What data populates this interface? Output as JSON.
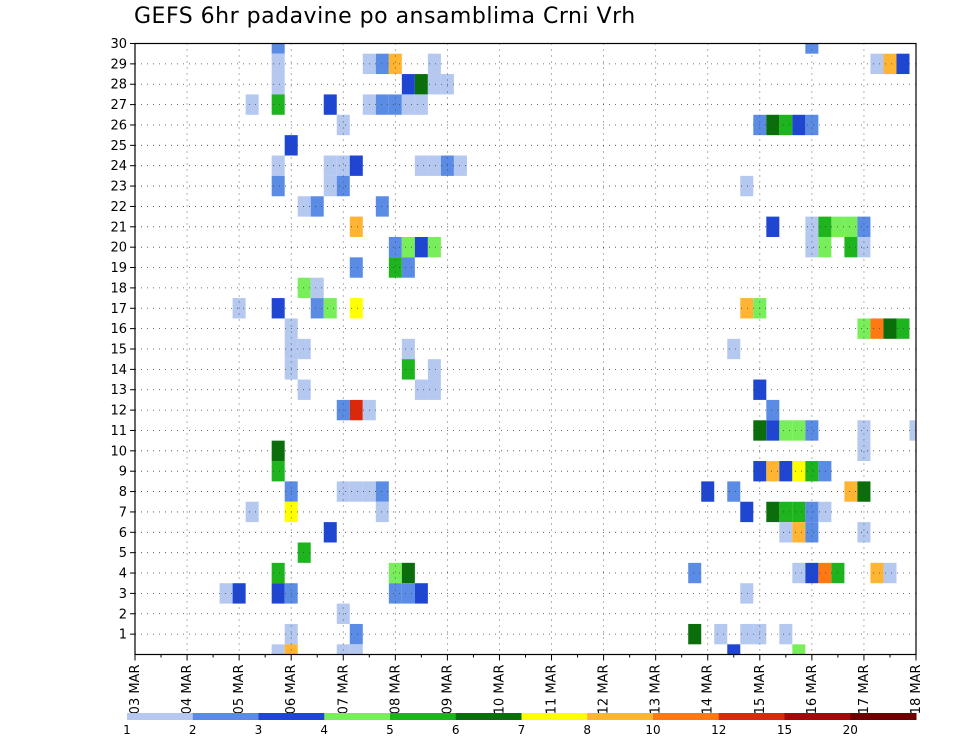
{
  "title": "GEFS 6hr padavine po ansamblima Crni Vrh",
  "chart_data": {
    "type": "heatmap",
    "title": "GEFS 6hr padavine po ansamblima Crni Vrh",
    "x_ticks": [
      "03 MAR",
      "04 MAR",
      "05 MAR",
      "06 MAR",
      "07 MAR",
      "08 MAR",
      "09 MAR",
      "10 MAR",
      "11 MAR",
      "12 MAR",
      "13 MAR",
      "14 MAR",
      "15 MAR",
      "16 MAR",
      "17 MAR",
      "18 MAR"
    ],
    "y_ticks": [
      "1",
      "2",
      "3",
      "4",
      "5",
      "6",
      "7",
      "8",
      "9",
      "10",
      "11",
      "12",
      "13",
      "14",
      "15",
      "16",
      "17",
      "18",
      "19",
      "20",
      "21",
      "22",
      "23",
      "24",
      "25",
      "26",
      "27",
      "28",
      "29",
      "30"
    ],
    "xlim_steps": [
      0,
      60
    ],
    "ylim": [
      0,
      30
    ],
    "grid": true,
    "colorbar": {
      "labels": [
        "1",
        "2",
        "3",
        "4",
        "5",
        "6",
        "7",
        "8",
        "10",
        "12",
        "15",
        "20"
      ],
      "colors": [
        "#b4c8f0",
        "#5a8ce6",
        "#1e46d2",
        "#78ee5a",
        "#1eb41e",
        "#0a6e0a",
        "#ffff00",
        "#ffb432",
        "#ff7814",
        "#dc280a",
        "#a00a0a",
        "#6e0000"
      ]
    },
    "cells": [
      [
        11,
        30,
        2
      ],
      [
        52,
        30,
        2
      ],
      [
        11,
        29,
        1
      ],
      [
        18,
        29,
        1
      ],
      [
        19,
        29,
        2
      ],
      [
        20,
        29,
        8
      ],
      [
        23,
        29,
        1
      ],
      [
        57,
        29,
        1
      ],
      [
        58,
        29,
        8
      ],
      [
        59,
        29,
        3
      ],
      [
        11,
        28,
        1
      ],
      [
        21,
        28,
        3
      ],
      [
        22,
        28,
        6
      ],
      [
        23,
        28,
        1
      ],
      [
        24,
        28,
        1
      ],
      [
        9,
        27,
        1
      ],
      [
        11,
        27,
        5
      ],
      [
        15,
        27,
        3
      ],
      [
        18,
        27,
        1
      ],
      [
        19,
        27,
        2
      ],
      [
        20,
        27,
        2
      ],
      [
        21,
        27,
        1
      ],
      [
        22,
        27,
        1
      ],
      [
        16,
        26,
        1
      ],
      [
        48,
        26,
        2
      ],
      [
        49,
        26,
        6
      ],
      [
        50,
        26,
        5
      ],
      [
        51,
        26,
        3
      ],
      [
        52,
        26,
        2
      ],
      [
        12,
        25,
        3
      ],
      [
        11,
        24,
        1
      ],
      [
        15,
        24,
        1
      ],
      [
        16,
        24,
        1
      ],
      [
        17,
        24,
        3
      ],
      [
        22,
        24,
        1
      ],
      [
        23,
        24,
        1
      ],
      [
        24,
        24,
        2
      ],
      [
        25,
        24,
        1
      ],
      [
        11,
        23,
        2
      ],
      [
        15,
        23,
        1
      ],
      [
        16,
        23,
        2
      ],
      [
        47,
        23,
        1
      ],
      [
        13,
        22,
        1
      ],
      [
        14,
        22,
        2
      ],
      [
        19,
        22,
        2
      ],
      [
        17,
        21,
        8
      ],
      [
        49,
        21,
        3
      ],
      [
        52,
        21,
        1
      ],
      [
        53,
        21,
        5
      ],
      [
        54,
        21,
        4
      ],
      [
        55,
        21,
        4
      ],
      [
        56,
        21,
        2
      ],
      [
        20,
        20,
        2
      ],
      [
        21,
        20,
        4
      ],
      [
        22,
        20,
        3
      ],
      [
        23,
        20,
        4
      ],
      [
        52,
        20,
        1
      ],
      [
        53,
        20,
        4
      ],
      [
        55,
        20,
        5
      ],
      [
        56,
        20,
        1
      ],
      [
        17,
        19,
        2
      ],
      [
        20,
        19,
        5
      ],
      [
        21,
        19,
        2
      ],
      [
        13,
        18,
        4
      ],
      [
        14,
        18,
        1
      ],
      [
        8,
        17,
        1
      ],
      [
        11,
        17,
        3
      ],
      [
        14,
        17,
        2
      ],
      [
        15,
        17,
        4
      ],
      [
        17,
        17,
        7
      ],
      [
        47,
        17,
        8
      ],
      [
        48,
        17,
        4
      ],
      [
        12,
        16,
        1
      ],
      [
        56,
        16,
        4
      ],
      [
        57,
        16,
        9
      ],
      [
        58,
        16,
        6
      ],
      [
        59,
        16,
        5
      ],
      [
        12,
        15,
        1
      ],
      [
        13,
        15,
        1
      ],
      [
        21,
        15,
        1
      ],
      [
        46,
        15,
        1
      ],
      [
        12,
        14,
        1
      ],
      [
        21,
        14,
        5
      ],
      [
        23,
        14,
        1
      ],
      [
        13,
        13,
        1
      ],
      [
        22,
        13,
        1
      ],
      [
        23,
        13,
        1
      ],
      [
        48,
        13,
        3
      ],
      [
        16,
        12,
        2
      ],
      [
        17,
        12,
        10
      ],
      [
        18,
        12,
        1
      ],
      [
        49,
        12,
        2
      ],
      [
        48,
        11,
        6
      ],
      [
        49,
        11,
        3
      ],
      [
        50,
        11,
        4
      ],
      [
        51,
        11,
        4
      ],
      [
        52,
        11,
        2
      ],
      [
        56,
        11,
        1
      ],
      [
        60,
        11,
        1
      ],
      [
        11,
        10,
        6
      ],
      [
        56,
        10,
        1
      ],
      [
        11,
        9,
        5
      ],
      [
        48,
        9,
        3
      ],
      [
        49,
        9,
        8
      ],
      [
        50,
        9,
        3
      ],
      [
        51,
        9,
        7
      ],
      [
        52,
        9,
        5
      ],
      [
        53,
        9,
        2
      ],
      [
        12,
        8,
        2
      ],
      [
        16,
        8,
        1
      ],
      [
        17,
        8,
        1
      ],
      [
        18,
        8,
        1
      ],
      [
        19,
        8,
        2
      ],
      [
        44,
        8,
        3
      ],
      [
        46,
        8,
        2
      ],
      [
        55,
        8,
        8
      ],
      [
        56,
        8,
        6
      ],
      [
        9,
        7,
        1
      ],
      [
        12,
        7,
        7
      ],
      [
        19,
        7,
        1
      ],
      [
        47,
        7,
        3
      ],
      [
        49,
        7,
        6
      ],
      [
        50,
        7,
        5
      ],
      [
        51,
        7,
        5
      ],
      [
        52,
        7,
        2
      ],
      [
        53,
        7,
        1
      ],
      [
        15,
        6,
        3
      ],
      [
        50,
        6,
        1
      ],
      [
        51,
        6,
        8
      ],
      [
        52,
        6,
        2
      ],
      [
        56,
        6,
        1
      ],
      [
        13,
        5,
        5
      ],
      [
        11,
        4,
        5
      ],
      [
        20,
        4,
        4
      ],
      [
        21,
        4,
        6
      ],
      [
        43,
        4,
        2
      ],
      [
        51,
        4,
        1
      ],
      [
        52,
        4,
        3
      ],
      [
        53,
        4,
        9
      ],
      [
        54,
        4,
        5
      ],
      [
        57,
        4,
        8
      ],
      [
        58,
        4,
        1
      ],
      [
        7,
        3,
        1
      ],
      [
        8,
        3,
        3
      ],
      [
        11,
        3,
        3
      ],
      [
        12,
        3,
        2
      ],
      [
        20,
        3,
        2
      ],
      [
        21,
        3,
        2
      ],
      [
        22,
        3,
        3
      ],
      [
        47,
        3,
        1
      ],
      [
        16,
        2,
        1
      ],
      [
        12,
        1,
        1
      ],
      [
        17,
        1,
        2
      ],
      [
        43,
        1,
        6
      ],
      [
        45,
        1,
        1
      ],
      [
        47,
        1,
        1
      ],
      [
        48,
        1,
        1
      ],
      [
        50,
        1,
        1
      ],
      [
        11,
        0,
        1
      ],
      [
        12,
        0,
        8
      ],
      [
        16,
        0,
        1
      ],
      [
        17,
        0,
        1
      ],
      [
        46,
        0,
        3
      ],
      [
        51,
        0,
        4
      ]
    ]
  }
}
